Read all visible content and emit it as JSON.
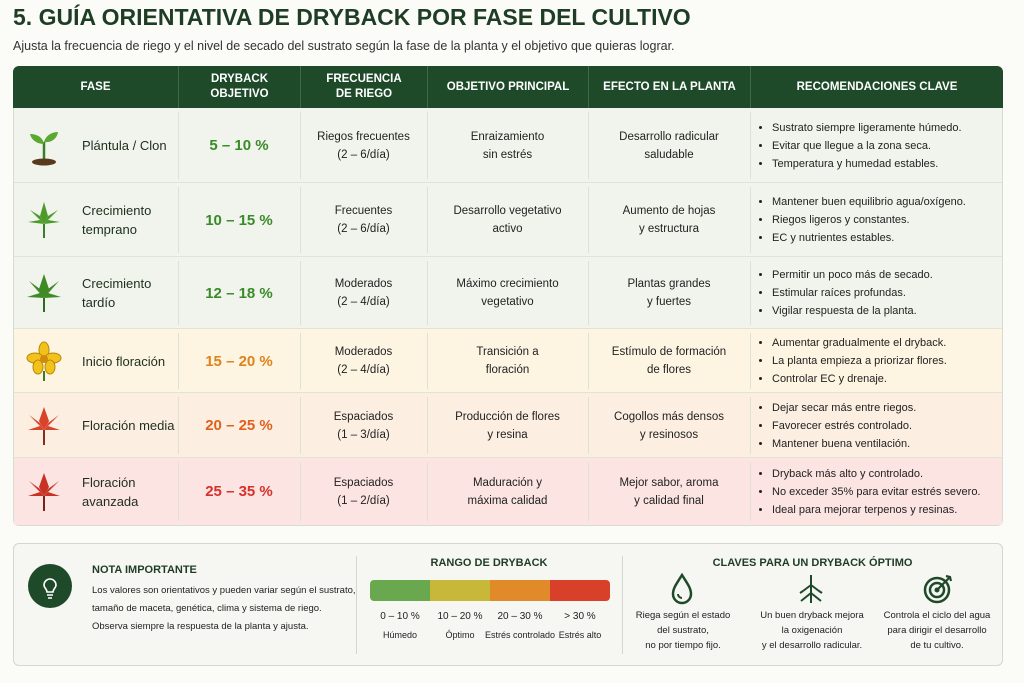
{
  "header": {
    "title": "5. GUÍA ORIENTATIVA DE DRYBACK POR FASE DEL CULTIVO",
    "subtitle": "Ajusta la frecuencia de riego y el nivel de secado del sustrato según la fase de la planta y el objetivo que quieras lograr."
  },
  "table": {
    "columns": [
      [
        "FASE"
      ],
      [
        "DRYBACK",
        "OBJETIVO"
      ],
      [
        "FRECUENCIA",
        "DE RIEGO"
      ],
      [
        "OBJETIVO PRINCIPAL"
      ],
      [
        "EFECTO EN LA PLANTA"
      ],
      [
        "RECOMENDACIONES CLAVE"
      ]
    ],
    "rows": [
      {
        "phase": [
          "Plántula / Clon"
        ],
        "dryback": "5 – 10 %",
        "frequency": [
          "Riegos frecuentes",
          "(2 – 6/día)"
        ],
        "objective": [
          "Enraizamiento",
          "sin estrés"
        ],
        "effect": [
          "Desarrollo radicular",
          "saludable"
        ],
        "recommendations": [
          "Sustrato siempre ligeramente húmedo.",
          "Evitar que llegue a la zona seca.",
          "Temperatura y humedad estables."
        ]
      },
      {
        "phase": [
          "Crecimiento",
          "temprano"
        ],
        "dryback": "10 – 15 %",
        "frequency": [
          "Frecuentes",
          "(2 – 6/día)"
        ],
        "objective": [
          "Desarrollo vegetativo",
          "activo"
        ],
        "effect": [
          "Aumento de hojas",
          "y estructura"
        ],
        "recommendations": [
          "Mantener buen equilibrio agua/oxígeno.",
          "Riegos ligeros y constantes.",
          "EC y nutrientes estables."
        ]
      },
      {
        "phase": [
          "Crecimiento",
          "tardío"
        ],
        "dryback": "12 – 18 %",
        "frequency": [
          "Moderados",
          "(2 – 4/día)"
        ],
        "objective": [
          "Máximo crecimiento",
          "vegetativo"
        ],
        "effect": [
          "Plantas grandes",
          "y fuertes"
        ],
        "recommendations": [
          "Permitir un poco más de secado.",
          "Estimular raíces profundas.",
          "Vigilar respuesta de la planta."
        ]
      },
      {
        "phase": [
          "Inicio floración"
        ],
        "dryback": "15 – 20 %",
        "frequency": [
          "Moderados",
          "(2 – 4/día)"
        ],
        "objective": [
          "Transición a",
          "floración"
        ],
        "effect": [
          "Estímulo de formación",
          "de flores"
        ],
        "recommendations": [
          "Aumentar gradualmente el dryback.",
          "La planta empieza a priorizar flores.",
          "Controlar EC y drenaje."
        ]
      },
      {
        "phase": [
          "Floración media"
        ],
        "dryback": "20 – 25 %",
        "frequency": [
          "Espaciados",
          "(1 – 3/día)"
        ],
        "objective": [
          "Producción de flores",
          "y resina"
        ],
        "effect": [
          "Cogollos más densos",
          "y resinosos"
        ],
        "recommendations": [
          "Dejar secar más entre riegos.",
          "Favorecer estrés controlado.",
          "Mantener buena ventilación."
        ]
      },
      {
        "phase": [
          "Floración",
          "avanzada"
        ],
        "dryback": "25 – 35 %",
        "frequency": [
          "Espaciados",
          "(1 – 2/día)"
        ],
        "objective": [
          "Maduración y",
          "máxima calidad"
        ],
        "effect": [
          "Mejor sabor, aroma",
          "y calidad final"
        ],
        "recommendations": [
          "Dryback más alto y controlado.",
          "No exceder 35% para evitar estrés severo.",
          "Ideal para mejorar terpenos y resinas."
        ]
      }
    ]
  },
  "note": {
    "title": "NOTA IMPORTANTE",
    "lines": [
      "Los valores son orientativos y pueden variar según el sustrato,",
      "tamaño de maceta, genética, clima y sistema de riego.",
      "Observa siempre la respuesta de la planta y ajusta."
    ]
  },
  "range": {
    "title": "RANGO DE DRYBACK",
    "segments": [
      {
        "range": "0 – 10 %",
        "label": "Húmedo"
      },
      {
        "range": "10 – 20 %",
        "label": "Óptimo"
      },
      {
        "range": "20 – 30 %",
        "label": "Estrés controlado"
      },
      {
        "range": "> 30 %",
        "label": "Estrés alto"
      }
    ]
  },
  "keys": {
    "title": "CLAVES PARA UN DRYBACK ÓPTIMO",
    "items": [
      [
        "Riega según el estado",
        "del sustrato,",
        "no por tiempo fijo."
      ],
      [
        "Un buen dryback mejora",
        "la oxigenación",
        "y el desarrollo radicular."
      ],
      [
        "Controla el ciclo del agua",
        "para dirigir el desarrollo",
        "de tu cultivo."
      ]
    ]
  }
}
